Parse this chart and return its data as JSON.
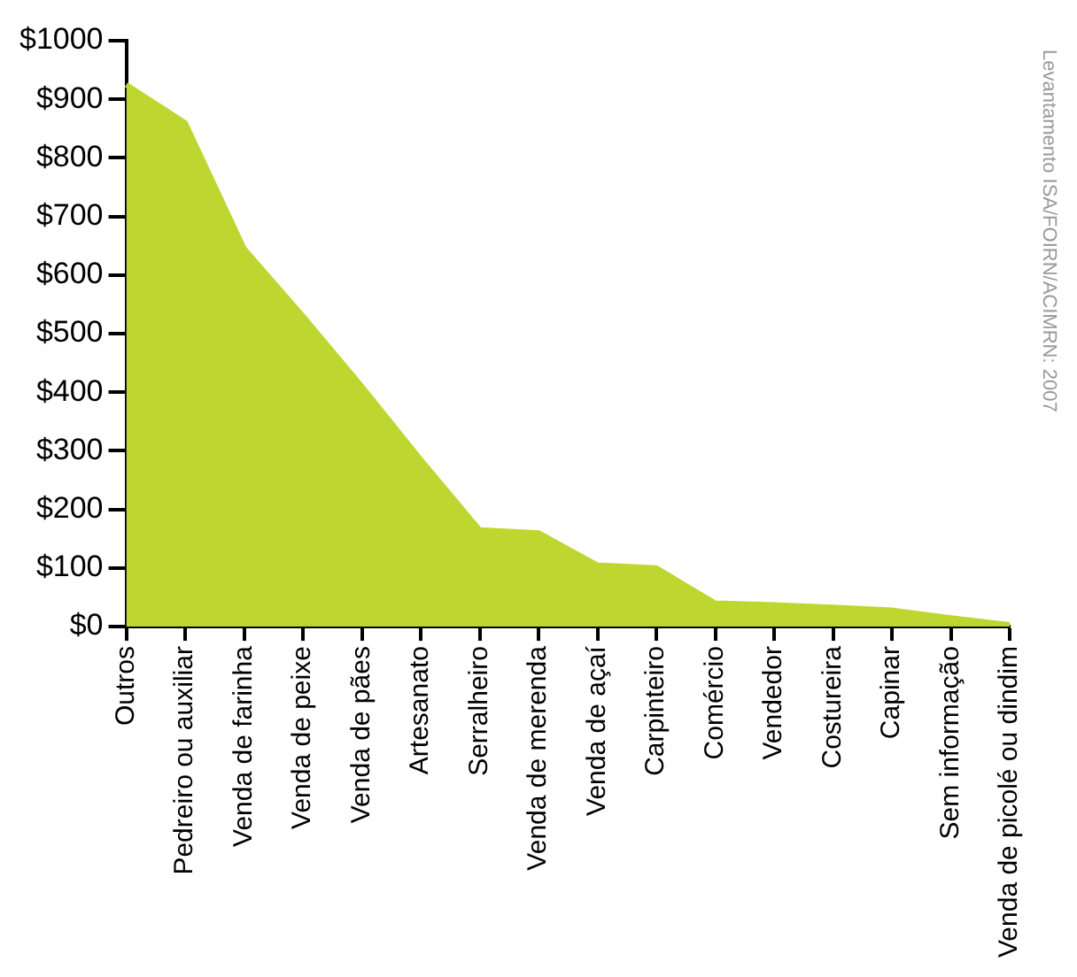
{
  "chart_data": {
    "type": "area",
    "categories": [
      "Outros",
      "Pedreiro ou auxiliar",
      "Venda de farinha",
      "Venda de peixe",
      "Venda de pães",
      "Artesanato",
      "Serralheiro",
      "Venda de merenda",
      "Venda de açaí",
      "Carpinteiro",
      "Comércio",
      "Vendedor",
      "Costureira",
      "Capinar",
      "Sem informação",
      "Venda de picolé ou dindim"
    ],
    "series": [
      {
        "color": "#bed630",
        "values": [
          925,
          860,
          645,
          530,
          410,
          285,
          165,
          160,
          105,
          100,
          40,
          37,
          33,
          28,
          15,
          3
        ]
      }
    ],
    "ylim": [
      0,
      1000
    ],
    "yticks": [
      {
        "value": 0,
        "label": "$0"
      },
      {
        "value": 100,
        "label": "$100"
      },
      {
        "value": 200,
        "label": "$200"
      },
      {
        "value": 300,
        "label": "$300"
      },
      {
        "value": 400,
        "label": "$400"
      },
      {
        "value": 500,
        "label": "$500"
      },
      {
        "value": 600,
        "label": "$600"
      },
      {
        "value": 700,
        "label": "$700"
      },
      {
        "value": 800,
        "label": "$800"
      },
      {
        "value": 900,
        "label": "$900"
      },
      {
        "value": 1000,
        "label": "$1000"
      }
    ],
    "grid": false,
    "legend": false,
    "marker": "none",
    "annotations": [
      "Levantamento ISA/FOIRN/ACIMRN: 2007"
    ]
  }
}
